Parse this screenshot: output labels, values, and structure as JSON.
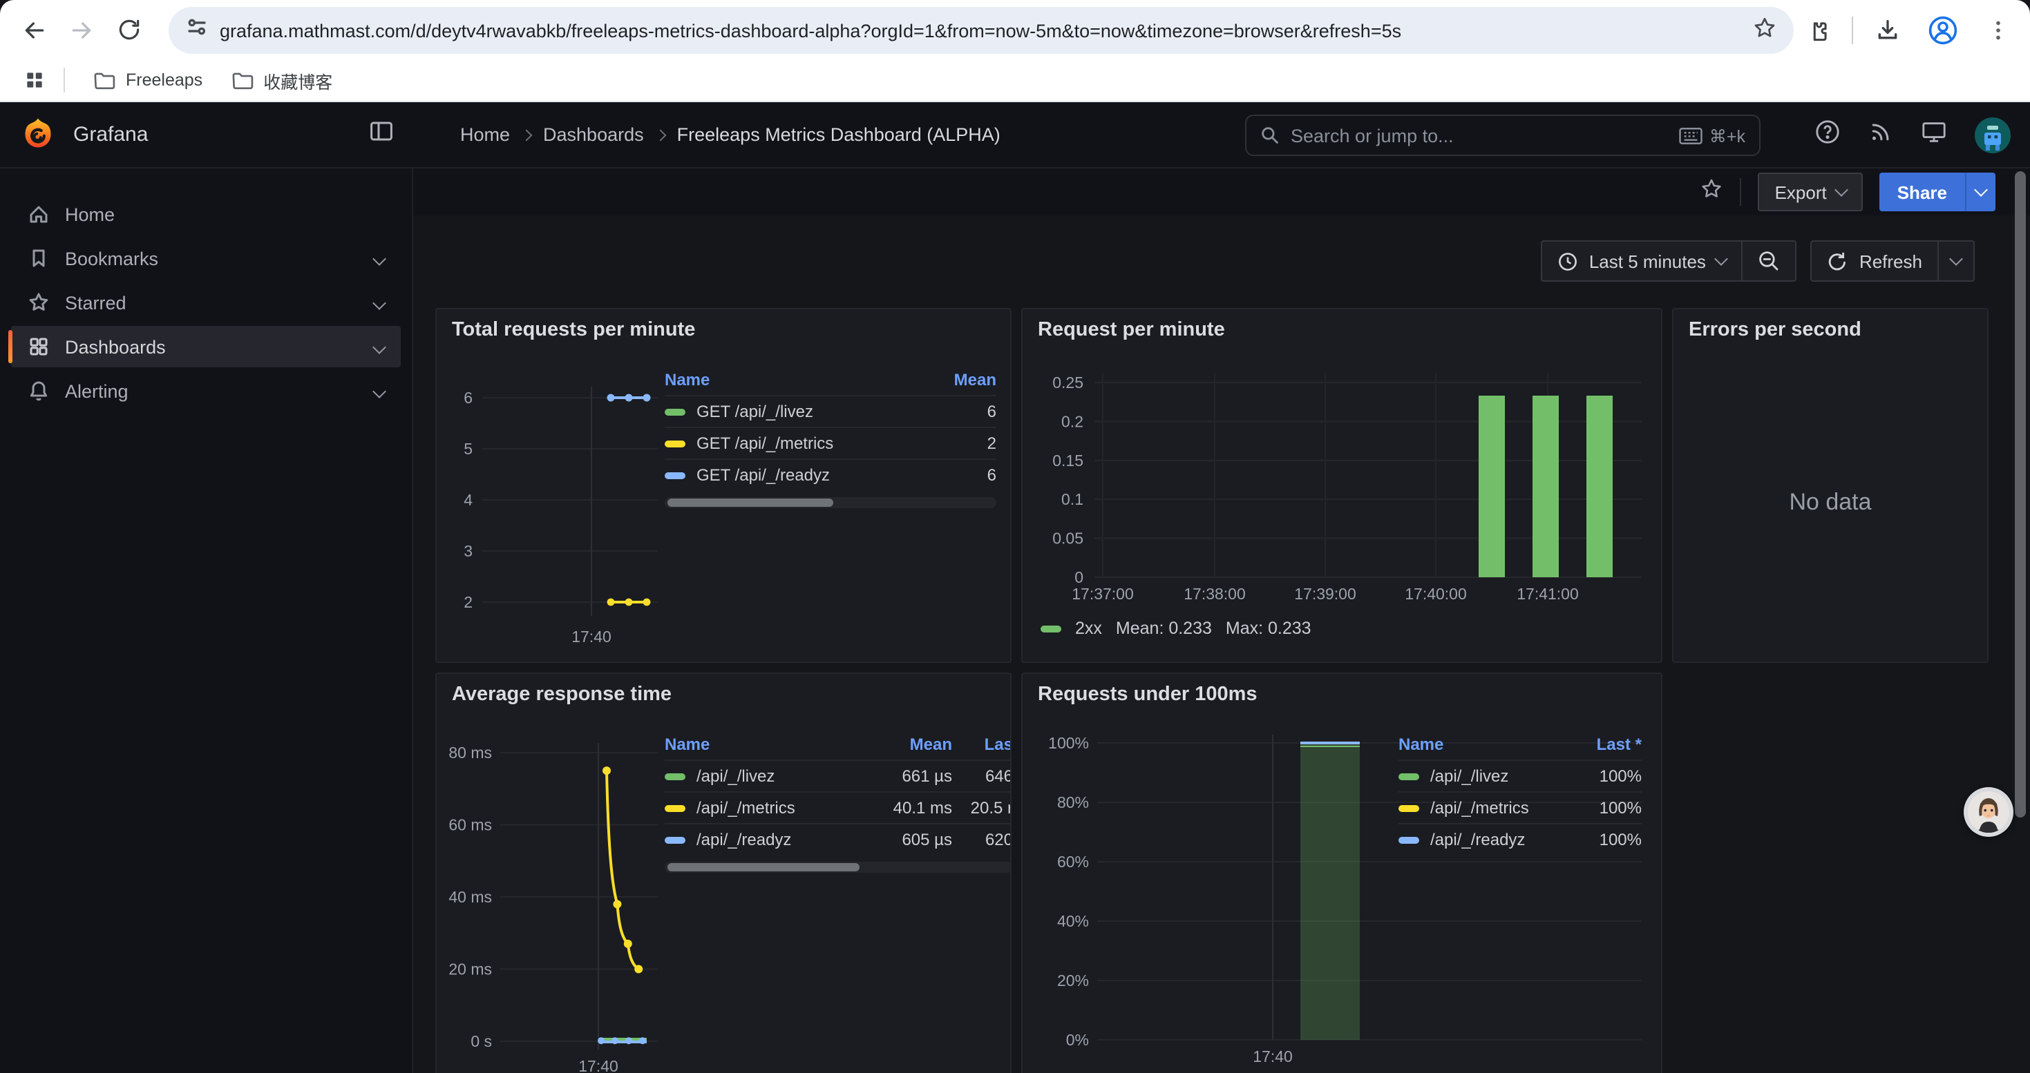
{
  "browser": {
    "url": "grafana.mathmast.com/d/deytv4rwavabkb/freeleaps-metrics-dashboard-alpha?orgId=1&from=now-5m&to=now&timezone=browser&refresh=5s",
    "bookmarks": [
      "Freeleaps",
      "收藏博客"
    ]
  },
  "sidebar": {
    "brand": "Grafana",
    "items": [
      {
        "label": "Home",
        "icon": "home-icon",
        "chevron": false,
        "active": false
      },
      {
        "label": "Bookmarks",
        "icon": "bookmark-icon",
        "chevron": true,
        "active": false
      },
      {
        "label": "Starred",
        "icon": "star-icon",
        "chevron": true,
        "active": false
      },
      {
        "label": "Dashboards",
        "icon": "grid-icon",
        "chevron": true,
        "active": true
      },
      {
        "label": "Alerting",
        "icon": "bell-icon",
        "chevron": true,
        "active": false
      }
    ]
  },
  "header": {
    "breadcrumb": [
      "Home",
      "Dashboards",
      "Freeleaps Metrics Dashboard (ALPHA)"
    ],
    "search": {
      "placeholder": "Search or jump to...",
      "shortcut": "⌘+k"
    },
    "toolbar": {
      "export": "Export",
      "share": "Share"
    },
    "timebar": {
      "range": "Last 5 minutes",
      "refresh": "Refresh"
    }
  },
  "colors": {
    "green": "#73bf69",
    "yellow": "#fade2a",
    "blue": "#8ab8ff",
    "share_blue": "#3d71d9",
    "accent_orange": "#ff9830"
  },
  "panels": {
    "total_requests": {
      "title": "Total requests per minute",
      "chart_data": {
        "type": "line",
        "yticks": [
          "6",
          "5",
          "4",
          "3",
          "2"
        ],
        "ylim": [
          2,
          6
        ],
        "x_tick_label": "17:40",
        "series": [
          {
            "name": "GET /api/_/livez",
            "color": "#73bf69",
            "value": 6
          },
          {
            "name": "GET /api/_/metrics",
            "color": "#fade2a",
            "value": 2
          },
          {
            "name": "GET /api/_/readyz",
            "color": "#8ab8ff",
            "value": 6
          }
        ],
        "legend": {
          "headers": [
            "Name",
            "Mean"
          ],
          "colors": [
            "#73bf69",
            "#fade2a",
            "#8ab8ff"
          ],
          "rows": [
            [
              "GET /api/_/livez",
              "6"
            ],
            [
              "GET /api/_/metrics",
              "2"
            ],
            [
              "GET /api/_/readyz",
              "6"
            ]
          ]
        }
      }
    },
    "request_per_minute": {
      "title": "Request per minute",
      "chart_data": {
        "type": "bar",
        "yticks": [
          "0.25",
          "0.2",
          "0.15",
          "0.1",
          "0.05",
          "0"
        ],
        "ylim": [
          0,
          0.25
        ],
        "xticks": [
          "17:37:00",
          "17:38:00",
          "17:39:00",
          "17:40:00",
          "17:41:00"
        ],
        "series": [
          {
            "name": "2xx",
            "color": "#73bf69",
            "values": [
              0.233,
              0.233,
              0.233
            ]
          }
        ],
        "legend": {
          "name": "2xx",
          "stats": [
            "Mean: 0.233",
            "Max: 0.233"
          ]
        }
      }
    },
    "errors_per_second": {
      "title": "Errors per second",
      "no_data": "No data"
    },
    "avg_response_time": {
      "title": "Average response time",
      "chart_data": {
        "type": "line",
        "yticks": [
          "80 ms",
          "60 ms",
          "40 ms",
          "20 ms",
          "0 s"
        ],
        "ylim_ms": [
          0,
          80
        ],
        "x_tick_label": "17:40",
        "metrics_curve_ms": [
          75,
          38,
          27,
          20
        ],
        "flat_series_colors": [
          "#73bf69",
          "#8ab8ff"
        ],
        "legend": {
          "headers": [
            "Name",
            "Mean",
            "Las"
          ],
          "colors": [
            "#73bf69",
            "#fade2a",
            "#8ab8ff"
          ],
          "rows": [
            [
              "/api/_/livez",
              "661 µs",
              "646"
            ],
            [
              "/api/_/metrics",
              "40.1 ms",
              "20.5 r"
            ],
            [
              "/api/_/readyz",
              "605 µs",
              "620"
            ]
          ]
        }
      }
    },
    "requests_under_100ms": {
      "title": "Requests under 100ms",
      "chart_data": {
        "type": "bar",
        "yticks": [
          "100%",
          "80%",
          "60%",
          "40%",
          "20%",
          "0%"
        ],
        "ylim": [
          0,
          1
        ],
        "x_tick_label": "17:40",
        "bar": {
          "value": 1.0,
          "fill_color": "#73bf69",
          "top_line_color": "#8ab8ff"
        },
        "legend": {
          "headers": [
            "Name",
            "Last *"
          ],
          "colors": [
            "#73bf69",
            "#fade2a",
            "#8ab8ff"
          ],
          "rows": [
            [
              "/api/_/livez",
              "100%"
            ],
            [
              "/api/_/metrics",
              "100%"
            ],
            [
              "/api/_/readyz",
              "100%"
            ]
          ]
        }
      }
    }
  }
}
